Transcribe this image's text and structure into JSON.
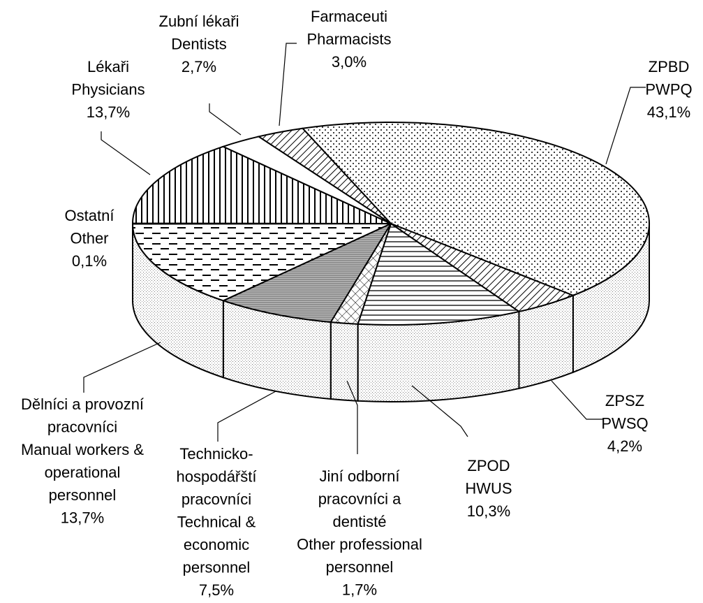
{
  "chart_data": {
    "type": "pie3d",
    "labels": [
      [
        "ZPBD",
        "PWPQ"
      ],
      [
        "ZPSZ",
        "PWSQ"
      ],
      [
        "ZPOD",
        "HWUS"
      ],
      [
        "Jiní odborní",
        "pracovníci a",
        "dentisté",
        "Other professional",
        "personnel"
      ],
      [
        "Technicko-",
        "hospodářští",
        "pracovníci",
        "Technical &",
        "economic",
        "personnel"
      ],
      [
        "Dělníci a provozní",
        "pracovníci",
        "Manual workers &",
        "operational",
        "personnel"
      ],
      [
        "Ostatní",
        "Other"
      ],
      [
        "Lékaři",
        "Physicians"
      ],
      [
        "Zubní lékaři",
        "Dentists"
      ],
      [
        "Farmaceuti",
        "Pharmacists"
      ]
    ],
    "values": [
      43.1,
      4.2,
      10.3,
      1.7,
      7.5,
      13.7,
      0.1,
      13.7,
      2.7,
      3.0
    ],
    "value_labels": [
      "43,1%",
      "4,2%",
      "10,3%",
      "1,7%",
      "7,5%",
      "13,7%",
      "0,1%",
      "13,7%",
      "2,7%",
      "3,0%"
    ]
  }
}
